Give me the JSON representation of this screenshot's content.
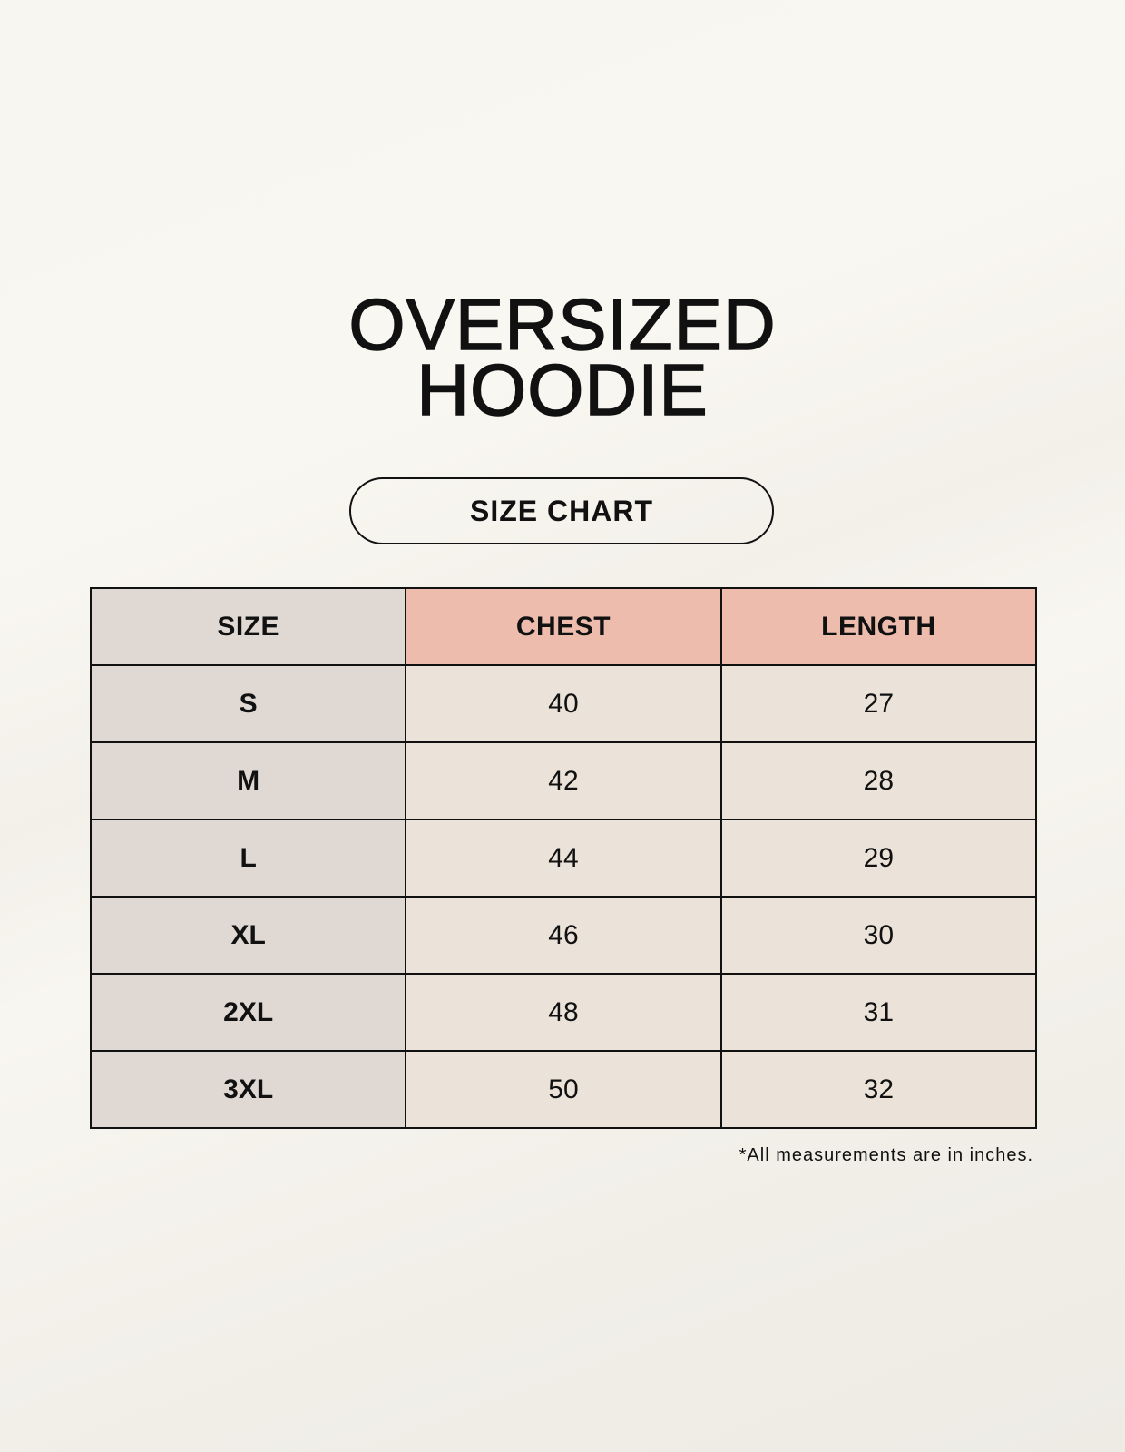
{
  "title": {
    "line1": "OVERSIZED",
    "line2": "HOODIE"
  },
  "subtitle": "SIZE CHART",
  "table": {
    "headers": [
      "SIZE",
      "CHEST",
      "LENGTH"
    ],
    "rows": [
      [
        "S",
        "40",
        "27"
      ],
      [
        "M",
        "42",
        "28"
      ],
      [
        "L",
        "44",
        "29"
      ],
      [
        "XL",
        "46",
        "30"
      ],
      [
        "2XL",
        "48",
        "31"
      ],
      [
        "3XL",
        "50",
        "32"
      ]
    ]
  },
  "footnote": "*All measurements are in inches.",
  "colors": {
    "size_column": "#e0d9d3",
    "header_accent": "#edbcad",
    "cell": "#ebe3d9"
  }
}
